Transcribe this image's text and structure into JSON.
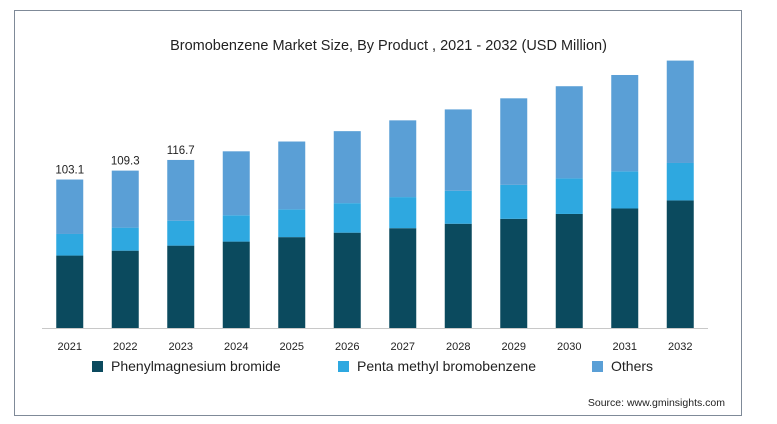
{
  "chart_data": {
    "type": "bar",
    "stacked": true,
    "title": "Bromobenzene Market Size, By Product , 2021 - 2032 (USD Million)",
    "categories": [
      "2021",
      "2022",
      "2023",
      "2024",
      "2025",
      "2026",
      "2027",
      "2028",
      "2029",
      "2030",
      "2031",
      "2032"
    ],
    "series": [
      {
        "name": "Phenylmagnesium bromide",
        "color": "#0b4a5e",
        "values": [
          50.3,
          53.7,
          57.2,
          60.0,
          63.1,
          66.2,
          69.3,
          72.4,
          75.8,
          79.2,
          83.0,
          88.6
        ]
      },
      {
        "name": "Penta methyl bromobenzene",
        "color": "#2ea8e0",
        "values": [
          15.0,
          16.0,
          17.3,
          18.3,
          19.3,
          20.5,
          21.6,
          22.9,
          23.6,
          24.7,
          25.8,
          26.0
        ]
      },
      {
        "name": "Others",
        "color": "#5a9fd6",
        "values": [
          37.8,
          39.6,
          42.2,
          44.4,
          47.1,
          50.0,
          53.3,
          56.5,
          60.1,
          64.0,
          66.9,
          71.1
        ]
      }
    ],
    "data_labels": [
      "103.1",
      "109.3",
      "116.7"
    ],
    "ylim": [
      0,
      200
    ],
    "grid": false,
    "legend_position": "bottom"
  },
  "source": "Source: www.gminsights.com"
}
